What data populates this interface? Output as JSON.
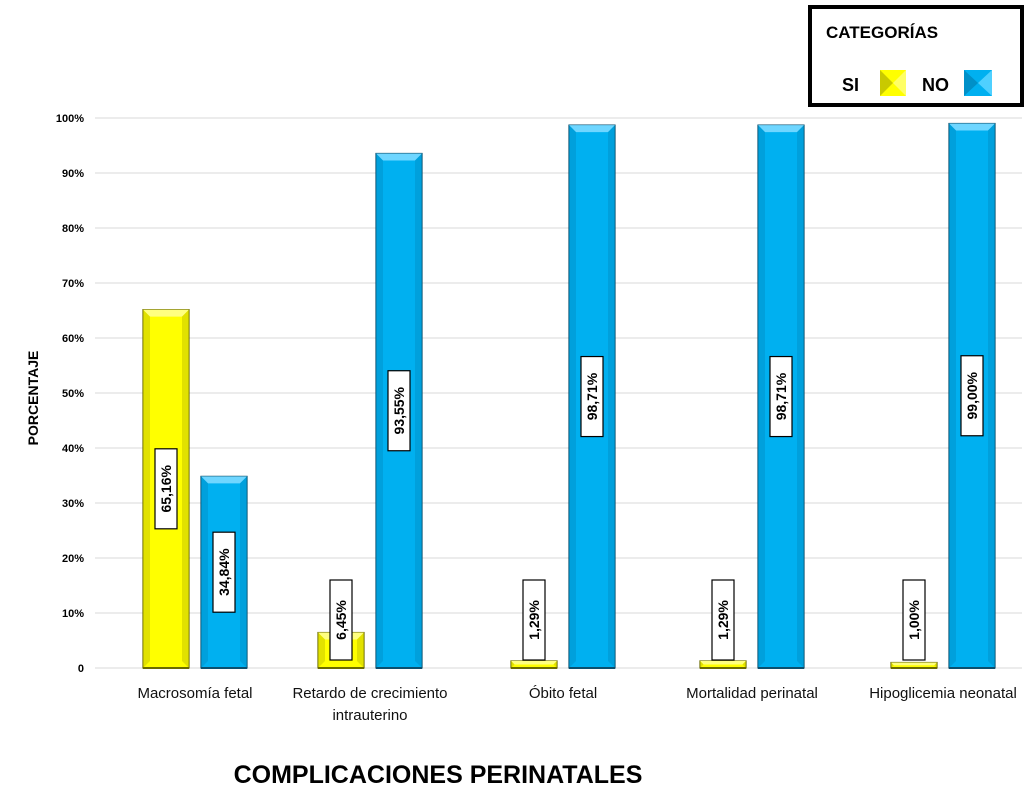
{
  "chart_data": {
    "type": "bar",
    "categories": [
      "Macrosomía fetal",
      "Retardo de crecimiento intrauterino",
      "Óbito fetal",
      "Mortalidad perinatal",
      "Hipoglicemia neonatal"
    ],
    "series": [
      {
        "name": "SI",
        "values": [
          65.16,
          6.45,
          1.29,
          1.29,
          1.0
        ],
        "labels": [
          "65,16%",
          "6,45%",
          "1,29%",
          "1,29%",
          "1,00%"
        ],
        "color": "#ffff00"
      },
      {
        "name": "NO",
        "values": [
          34.84,
          93.55,
          98.71,
          98.71,
          99.0
        ],
        "labels": [
          "34,84%",
          "93,55%",
          "98,71%",
          "98,71%",
          "99,00%"
        ],
        "color": "#00b0f0"
      }
    ],
    "yticks": [
      0,
      10,
      20,
      30,
      40,
      50,
      60,
      70,
      80,
      90,
      100
    ],
    "ytick_labels": [
      "0",
      "10%",
      "20%",
      "30%",
      "40%",
      "50%",
      "60%",
      "70%",
      "80%",
      "90%",
      "100%"
    ],
    "ylim": [
      0,
      100
    ],
    "ylabel": "PORCENTAJE",
    "xlabel": "COMPLICACIONES PERINATALES",
    "grid": true,
    "legend": {
      "title": "CATEGORÍAS",
      "position": "top-right",
      "entries": [
        "SI",
        "NO"
      ]
    }
  }
}
